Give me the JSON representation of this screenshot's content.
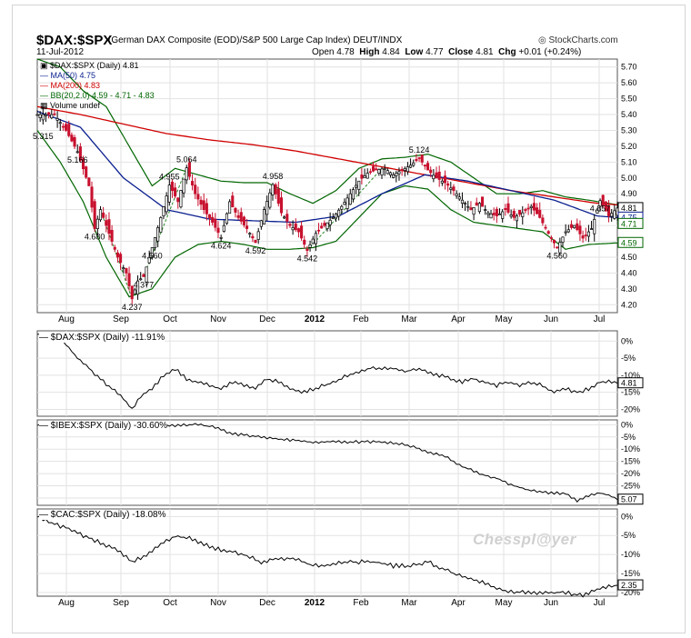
{
  "header": {
    "symbol": "$DAX:$SPX",
    "description": "(German DAX Composite (EOD)/S&P 500 Large Cap Index) DEUT/INDX",
    "date": "11-Jul-2012",
    "brand": "StockCharts.com"
  },
  "quote": {
    "open_label": "Open",
    "open": "4.78",
    "high_label": "High",
    "high": "4.84",
    "low_label": "Low",
    "low": "4.77",
    "close_label": "Close",
    "close": "4.81",
    "chg_label": "Chg",
    "chg": "+0.01 (+0.24%)"
  },
  "legend": {
    "main": "$DAX:$SPX (Daily) 4.81",
    "ma50": "MA(50) 4.75",
    "ma200": "MA(200) 4.83",
    "bb": "BB(20,2.0) 4.59 - 4.71 - 4.83",
    "volume": "Volume undef"
  },
  "watermark": "Chesspl@yer",
  "colors": {
    "ma50": "#0a1f8f",
    "ma200": "#d00000",
    "bollinger": "#006600",
    "candle_down": "#c8102e",
    "candle_up": "#000000",
    "grid": "#e2e2e2",
    "trend_dashed": "#2a8a2a"
  },
  "chart_data": [
    {
      "type": "line",
      "title": "$DAX:$SPX (Daily)",
      "style": "candlestick",
      "x_labels": [
        "Aug",
        "Sep",
        "Oct",
        "Nov",
        "Dec",
        "2012",
        "Feb",
        "Mar",
        "Apr",
        "May",
        "Jun",
        "Jul"
      ],
      "x_ticks": [
        "Aug",
        "Sep",
        "Oct",
        "Nov",
        "Dec",
        "2012",
        "Feb",
        "Mar",
        "Apr",
        "May",
        "Jun",
        "Jul"
      ],
      "y_ticks": [
        5.7,
        5.6,
        5.5,
        5.4,
        5.3,
        5.2,
        5.1,
        5.0,
        4.9,
        4.8,
        4.7,
        4.6,
        4.5,
        4.4,
        4.3,
        4.2
      ],
      "ylim": [
        4.15,
        5.75
      ],
      "price_axis_tags": [
        4.81,
        4.75,
        4.71,
        4.59
      ],
      "anchors": [
        [
          0,
          5.4
        ],
        [
          6,
          5.4
        ],
        [
          10,
          5.3
        ],
        [
          14,
          5.166
        ],
        [
          18,
          4.95
        ],
        [
          20,
          4.68
        ],
        [
          22,
          4.8
        ],
        [
          25,
          4.65
        ],
        [
          28,
          4.5
        ],
        [
          31,
          4.4
        ],
        [
          33,
          4.237
        ],
        [
          35,
          4.35
        ],
        [
          37,
          4.377
        ],
        [
          40,
          4.56
        ],
        [
          43,
          4.75
        ],
        [
          46,
          4.955
        ],
        [
          49,
          4.85
        ],
        [
          52,
          5.064
        ],
        [
          55,
          4.9
        ],
        [
          58,
          4.8
        ],
        [
          61,
          4.72
        ],
        [
          64,
          4.624
        ],
        [
          67,
          4.85
        ],
        [
          70,
          4.75
        ],
        [
          73,
          4.68
        ],
        [
          76,
          4.592
        ],
        [
          79,
          4.8
        ],
        [
          82,
          4.958
        ],
        [
          85,
          4.78
        ],
        [
          88,
          4.7
        ],
        [
          91,
          4.66
        ],
        [
          94,
          4.542
        ],
        [
          97,
          4.65
        ],
        [
          100,
          4.7
        ],
        [
          103,
          4.75
        ],
        [
          106,
          4.82
        ],
        [
          109,
          4.9
        ],
        [
          112,
          4.98
        ],
        [
          115,
          5.03
        ],
        [
          118,
          5.05
        ],
        [
          121,
          5.06
        ],
        [
          124,
          5.02
        ],
        [
          127,
          5.05
        ],
        [
          130,
          5.08
        ],
        [
          133,
          5.124
        ],
        [
          136,
          5.05
        ],
        [
          139,
          5.0
        ],
        [
          142,
          4.97
        ],
        [
          145,
          4.92
        ],
        [
          148,
          4.86
        ],
        [
          151,
          4.8
        ],
        [
          154,
          4.84
        ],
        [
          157,
          4.78
        ],
        [
          160,
          4.76
        ],
        [
          163,
          4.8
        ],
        [
          166,
          4.75
        ],
        [
          169,
          4.78
        ],
        [
          172,
          4.82
        ],
        [
          175,
          4.75
        ],
        [
          178,
          4.65
        ],
        [
          181,
          4.56
        ],
        [
          184,
          4.66
        ],
        [
          187,
          4.7
        ],
        [
          190,
          4.62
        ],
        [
          193,
          4.68
        ],
        [
          196,
          4.857
        ],
        [
          199,
          4.76
        ],
        [
          202,
          4.81
        ]
      ],
      "ma50_anchors": [
        [
          0,
          5.42
        ],
        [
          15,
          5.32
        ],
        [
          30,
          5.0
        ],
        [
          45,
          4.8
        ],
        [
          60,
          4.74
        ],
        [
          75,
          4.73
        ],
        [
          90,
          4.72
        ],
        [
          105,
          4.76
        ],
        [
          120,
          4.9
        ],
        [
          135,
          5.02
        ],
        [
          150,
          4.98
        ],
        [
          165,
          4.92
        ],
        [
          180,
          4.86
        ],
        [
          195,
          4.76
        ],
        [
          202,
          4.75
        ]
      ],
      "ma200_anchors": [
        [
          0,
          5.45
        ],
        [
          15,
          5.4
        ],
        [
          30,
          5.34
        ],
        [
          45,
          5.28
        ],
        [
          60,
          5.24
        ],
        [
          75,
          5.21
        ],
        [
          90,
          5.17
        ],
        [
          105,
          5.12
        ],
        [
          120,
          5.07
        ],
        [
          135,
          5.02
        ],
        [
          150,
          4.97
        ],
        [
          165,
          4.92
        ],
        [
          180,
          4.88
        ],
        [
          195,
          4.84
        ],
        [
          202,
          4.83
        ]
      ],
      "bb_upper_anchors": [
        [
          0,
          5.75
        ],
        [
          8,
          5.7
        ],
        [
          16,
          5.55
        ],
        [
          24,
          5.45
        ],
        [
          32,
          5.2
        ],
        [
          40,
          4.95
        ],
        [
          48,
          5.06
        ],
        [
          56,
          5.02
        ],
        [
          64,
          4.98
        ],
        [
          72,
          4.97
        ],
        [
          80,
          4.97
        ],
        [
          88,
          4.9
        ],
        [
          96,
          4.84
        ],
        [
          104,
          4.92
        ],
        [
          112,
          5.06
        ],
        [
          120,
          5.12
        ],
        [
          128,
          5.13
        ],
        [
          136,
          5.15
        ],
        [
          144,
          5.1
        ],
        [
          152,
          5.0
        ],
        [
          160,
          4.9
        ],
        [
          168,
          4.9
        ],
        [
          176,
          4.92
        ],
        [
          184,
          4.88
        ],
        [
          192,
          4.86
        ],
        [
          202,
          4.83
        ]
      ],
      "bb_lower_anchors": [
        [
          0,
          5.3
        ],
        [
          8,
          5.1
        ],
        [
          16,
          4.85
        ],
        [
          24,
          4.5
        ],
        [
          32,
          4.25
        ],
        [
          40,
          4.3
        ],
        [
          48,
          4.5
        ],
        [
          56,
          4.58
        ],
        [
          64,
          4.6
        ],
        [
          72,
          4.58
        ],
        [
          80,
          4.55
        ],
        [
          88,
          4.55
        ],
        [
          96,
          4.56
        ],
        [
          104,
          4.6
        ],
        [
          112,
          4.75
        ],
        [
          120,
          4.9
        ],
        [
          128,
          4.95
        ],
        [
          136,
          4.93
        ],
        [
          144,
          4.8
        ],
        [
          152,
          4.72
        ],
        [
          160,
          4.7
        ],
        [
          168,
          4.68
        ],
        [
          176,
          4.66
        ],
        [
          184,
          4.55
        ],
        [
          192,
          4.58
        ],
        [
          202,
          4.59
        ]
      ],
      "annotations": [
        {
          "label": "5.315",
          "i": 2,
          "v": 5.315
        },
        {
          "label": "5.166",
          "i": 14,
          "v": 5.166
        },
        {
          "label": "4.680",
          "i": 20,
          "v": 4.68
        },
        {
          "label": "4.237",
          "i": 33,
          "v": 4.237
        },
        {
          "label": "4.377",
          "i": 37,
          "v": 4.377
        },
        {
          "label": "4.560",
          "i": 40,
          "v": 4.56
        },
        {
          "label": "4.955",
          "i": 46,
          "v": 4.955
        },
        {
          "label": "5.064",
          "i": 52,
          "v": 5.064
        },
        {
          "label": "4.624",
          "i": 64,
          "v": 4.624
        },
        {
          "label": "4.592",
          "i": 76,
          "v": 4.592
        },
        {
          "label": "4.958",
          "i": 82,
          "v": 4.958
        },
        {
          "label": "4.542",
          "i": 94,
          "v": 4.542
        },
        {
          "label": "5.124",
          "i": 133,
          "v": 5.124
        },
        {
          "label": "4.560",
          "i": 181,
          "v": 4.56
        },
        {
          "label": "4.857",
          "i": 196,
          "v": 4.857
        }
      ]
    },
    {
      "type": "line",
      "title": "$DAX:$SPX (Daily) -11.91%",
      "units": "%",
      "y_ticks": [
        0,
        -5,
        -10,
        -15,
        -20
      ],
      "ylim": [
        -22,
        3
      ],
      "last_value_tag": "4.81",
      "anchors": [
        [
          0,
          2
        ],
        [
          6,
          1
        ],
        [
          10,
          -1
        ],
        [
          14,
          -5
        ],
        [
          18,
          -8
        ],
        [
          22,
          -11
        ],
        [
          26,
          -14
        ],
        [
          30,
          -17
        ],
        [
          33,
          -20
        ],
        [
          36,
          -16
        ],
        [
          40,
          -14
        ],
        [
          44,
          -10
        ],
        [
          48,
          -8
        ],
        [
          52,
          -11
        ],
        [
          56,
          -12
        ],
        [
          60,
          -13
        ],
        [
          64,
          -14
        ],
        [
          68,
          -12
        ],
        [
          72,
          -13
        ],
        [
          76,
          -14
        ],
        [
          80,
          -11
        ],
        [
          84,
          -12
        ],
        [
          88,
          -14
        ],
        [
          92,
          -15
        ],
        [
          96,
          -14
        ],
        [
          100,
          -13
        ],
        [
          104,
          -12
        ],
        [
          108,
          -10
        ],
        [
          112,
          -9
        ],
        [
          116,
          -8
        ],
        [
          120,
          -8
        ],
        [
          124,
          -8
        ],
        [
          128,
          -9
        ],
        [
          132,
          -8
        ],
        [
          136,
          -9
        ],
        [
          140,
          -10
        ],
        [
          144,
          -11
        ],
        [
          148,
          -12
        ],
        [
          152,
          -11
        ],
        [
          156,
          -12
        ],
        [
          160,
          -13
        ],
        [
          164,
          -12
        ],
        [
          168,
          -13
        ],
        [
          172,
          -12
        ],
        [
          176,
          -13
        ],
        [
          180,
          -15
        ],
        [
          184,
          -14
        ],
        [
          188,
          -15
        ],
        [
          192,
          -14
        ],
        [
          196,
          -12
        ],
        [
          202,
          -11.9
        ]
      ],
      "panel_index": 1
    },
    {
      "type": "line",
      "title": "$IBEX:$SPX (Daily) -30.60%",
      "units": "%",
      "y_ticks": [
        0,
        -5,
        -10,
        -15,
        -20,
        -25,
        -30
      ],
      "ylim": [
        -33,
        2
      ],
      "last_value_tag": "5.07",
      "anchors": [
        [
          0,
          0
        ],
        [
          10,
          0
        ],
        [
          20,
          -1
        ],
        [
          30,
          -1
        ],
        [
          40,
          -1
        ],
        [
          50,
          0
        ],
        [
          56,
          0
        ],
        [
          62,
          -1
        ],
        [
          66,
          -3
        ],
        [
          70,
          -4
        ],
        [
          78,
          -5
        ],
        [
          86,
          -6
        ],
        [
          94,
          -7
        ],
        [
          100,
          -7
        ],
        [
          110,
          -7
        ],
        [
          120,
          -7
        ],
        [
          128,
          -8
        ],
        [
          136,
          -11
        ],
        [
          142,
          -13
        ],
        [
          148,
          -17
        ],
        [
          154,
          -20
        ],
        [
          160,
          -22
        ],
        [
          166,
          -25
        ],
        [
          172,
          -27
        ],
        [
          178,
          -28
        ],
        [
          184,
          -28
        ],
        [
          188,
          -31
        ],
        [
          192,
          -29
        ],
        [
          196,
          -28
        ],
        [
          200,
          -29
        ],
        [
          202,
          -30.6
        ]
      ],
      "panel_index": 2
    },
    {
      "type": "line",
      "title": "$CAC:$SPX (Daily) -18.08%",
      "units": "%",
      "y_ticks": [
        0,
        -5,
        -10,
        -15,
        -20
      ],
      "ylim": [
        -21,
        2
      ],
      "last_value_tag": "2.35",
      "anchors": [
        [
          0,
          0
        ],
        [
          6,
          -2
        ],
        [
          10,
          -3
        ],
        [
          16,
          -5
        ],
        [
          22,
          -7
        ],
        [
          28,
          -9
        ],
        [
          33,
          -12
        ],
        [
          38,
          -10
        ],
        [
          44,
          -7
        ],
        [
          48,
          -5
        ],
        [
          54,
          -6
        ],
        [
          60,
          -8
        ],
        [
          66,
          -9
        ],
        [
          72,
          -10
        ],
        [
          78,
          -12
        ],
        [
          84,
          -11
        ],
        [
          90,
          -11
        ],
        [
          96,
          -13
        ],
        [
          100,
          -13
        ],
        [
          106,
          -12
        ],
        [
          112,
          -12
        ],
        [
          118,
          -12
        ],
        [
          124,
          -13
        ],
        [
          130,
          -13
        ],
        [
          136,
          -12
        ],
        [
          142,
          -14
        ],
        [
          148,
          -16
        ],
        [
          154,
          -17
        ],
        [
          160,
          -19
        ],
        [
          166,
          -20
        ],
        [
          172,
          -20
        ],
        [
          178,
          -20
        ],
        [
          184,
          -20
        ],
        [
          190,
          -21
        ],
        [
          196,
          -19
        ],
        [
          202,
          -18.1
        ]
      ],
      "panel_index": 3
    }
  ],
  "panels": [
    {
      "label": "$DAX:$SPX (Daily) -11.91%"
    },
    {
      "label": "$IBEX:$SPX (Daily) -30.60%"
    },
    {
      "label": "$CAC:$SPX (Daily) -18.08%"
    }
  ]
}
